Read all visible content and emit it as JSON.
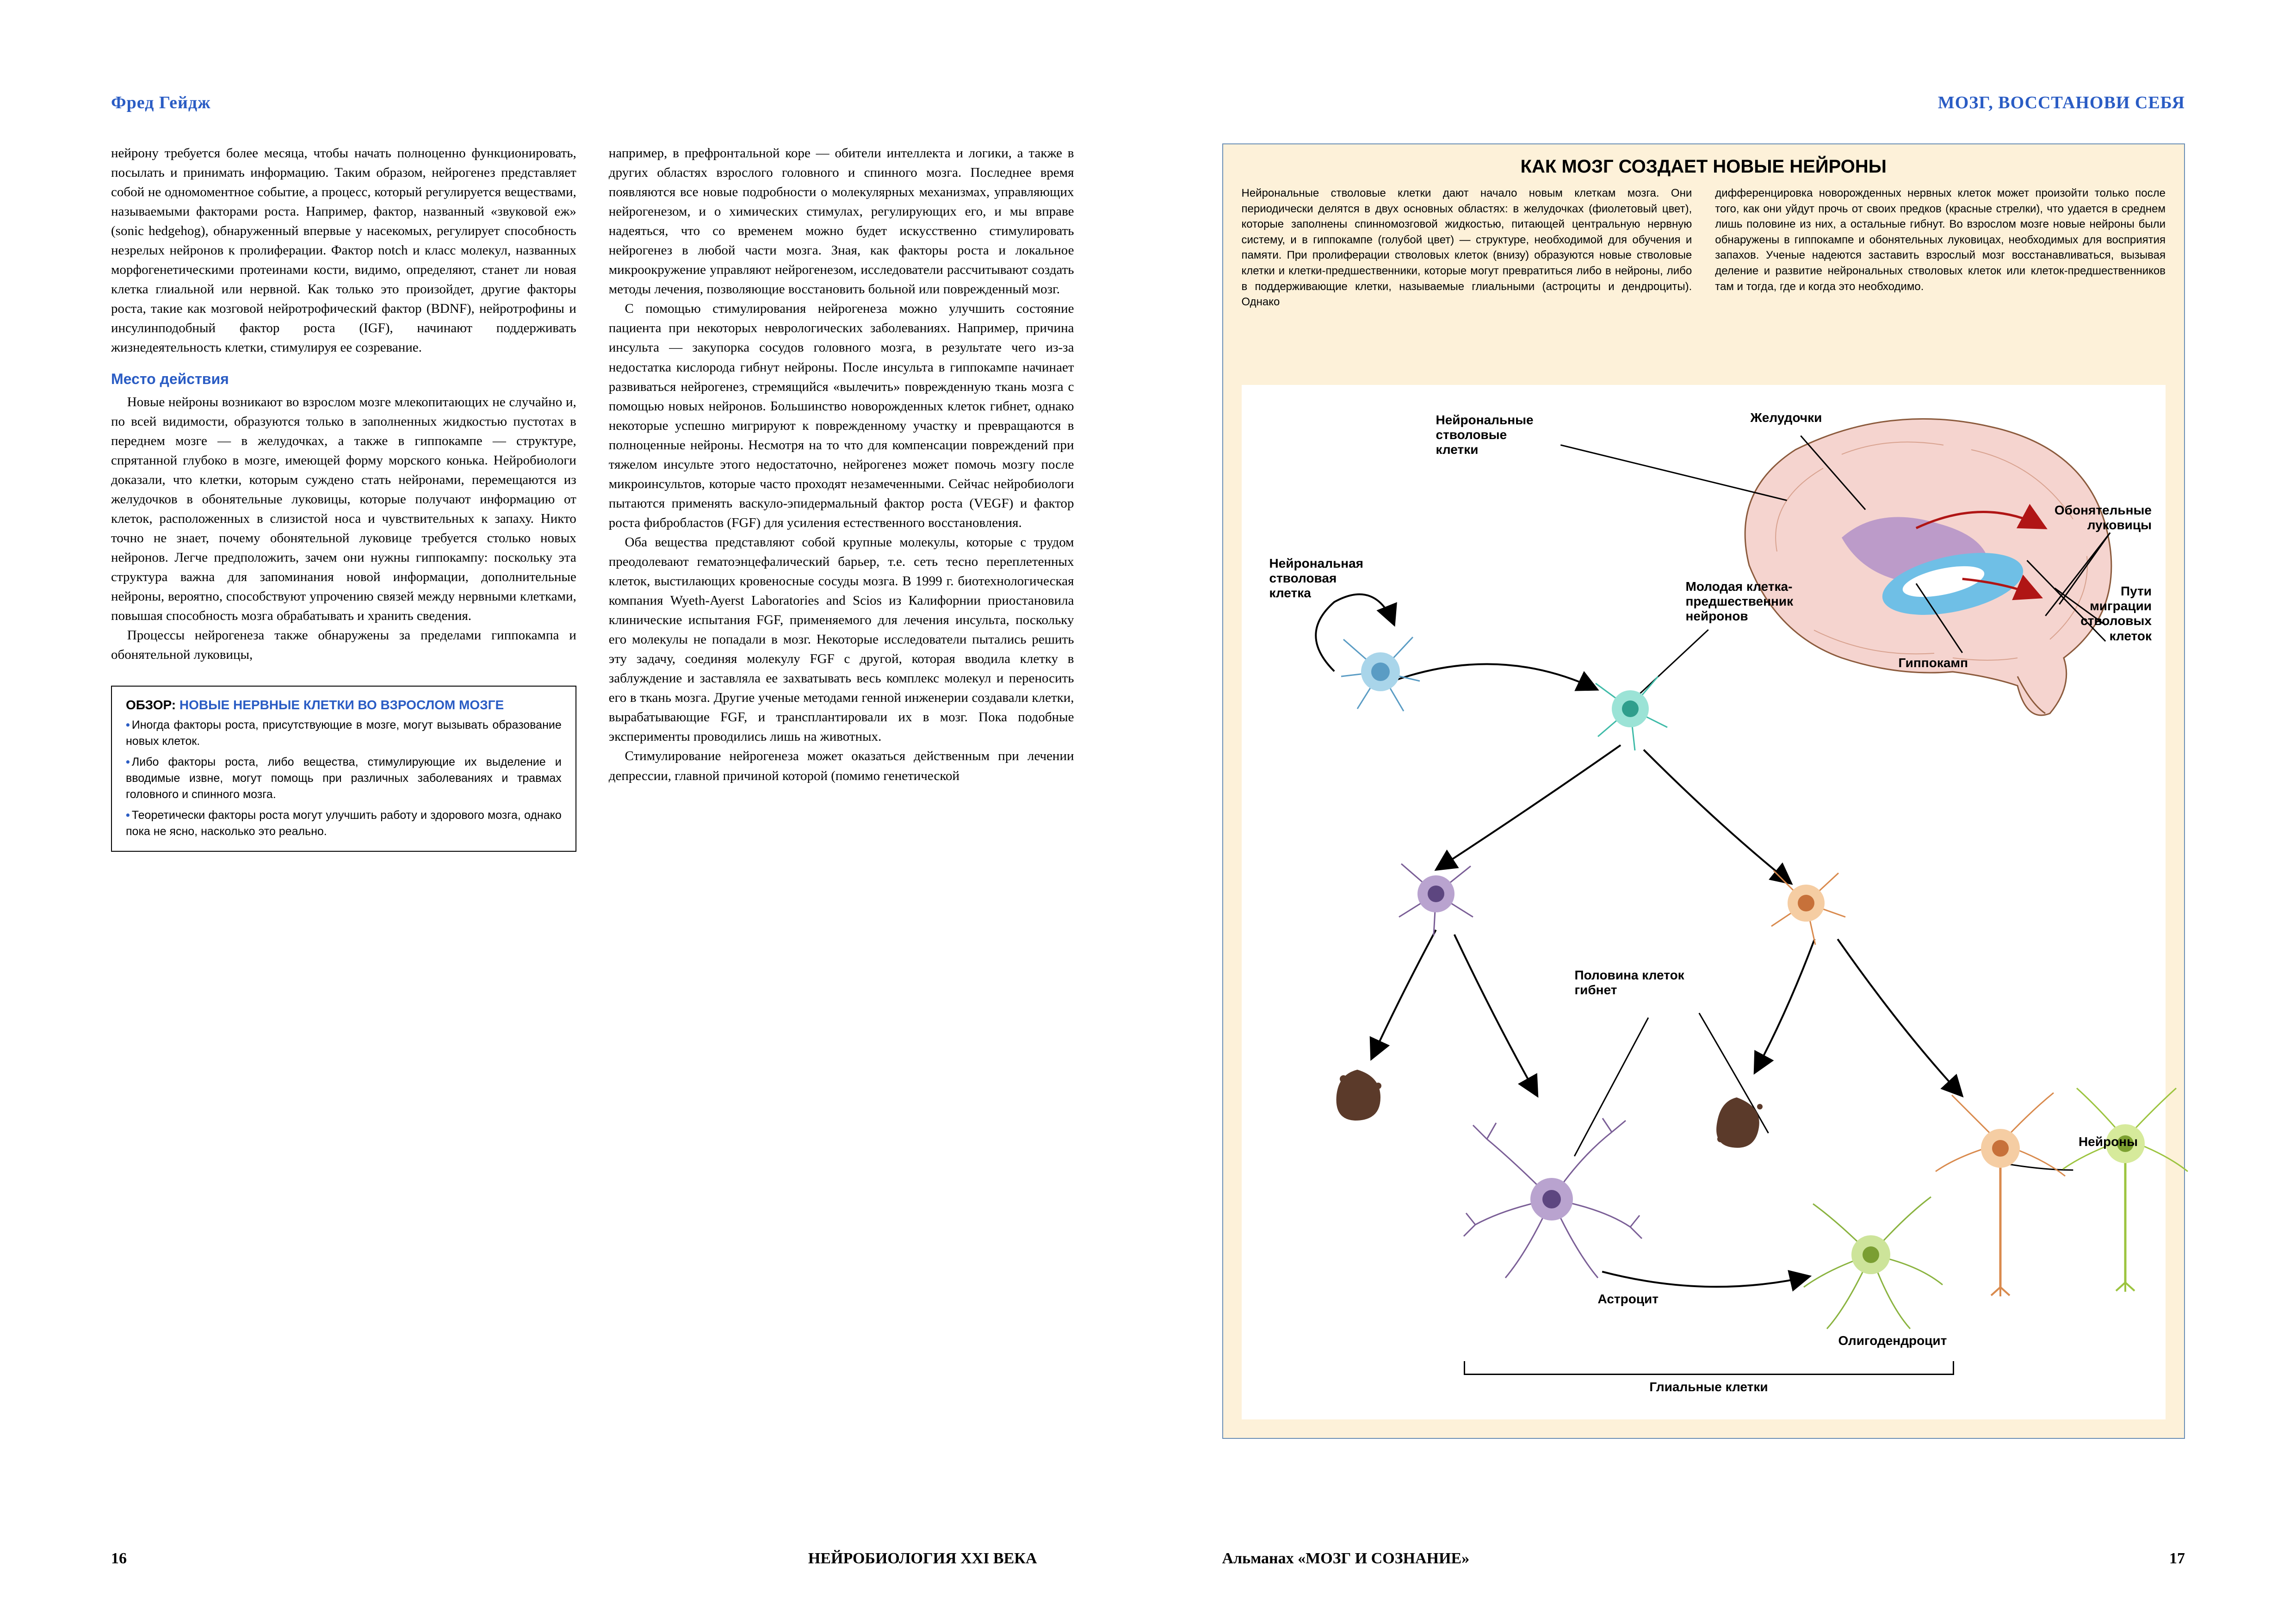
{
  "running_heads": {
    "left": "Фред Гейдж",
    "right": "МОЗГ, ВОССТАНОВИ СЕБЯ"
  },
  "pages": {
    "left": {
      "number": "16",
      "footer": "НЕЙРОБИОЛОГИЯ XXI ВЕКА"
    },
    "right": {
      "number": "17",
      "footer": "Альманах «МОЗГ И СОЗНАНИЕ»"
    }
  },
  "col1_p1": "нейрону требуется более месяца, чтобы начать полноценно функционировать, посылать и принимать информацию. Таким образом, нейрогенез представляет собой не одномоментное событие, а процесс, который регулируется веществами, называемыми факторами роста. Например, фактор, названный «звуковой еж» (sonic hedgehog), обнаруженный впервые у насекомых, регулирует способность незрелых нейронов к пролиферации. Фактор notch и класс молекул, названных морфогенетическими протеинами кости, видимо, определяют, станет ли новая клетка глиальной или нервной. Как только это произойдет, другие факторы роста, такие как мозговой нейротрофический фактор (BDNF), нейротрофины и инсулинподобный фактор роста (IGF), начинают поддерживать жизнедеятельность клетки, стимулируя ее созревание.",
  "section_head": "Место действия",
  "col1_p2": "Новые нейроны возникают во взрослом мозге млекопитающих не случайно и, по всей видимости, образуются только в заполненных жидкостью пустотах в переднем мозге — в желудочках, а также в гиппокампе — структуре, спрятанной глубоко в мозге, имеющей форму морского конька. Нейробиологи доказали, что клетки, которым суждено стать нейронами, перемещаются из желудочков в обонятельные луковицы, которые получают информацию от клеток, расположенных в слизистой носа и чувствительных к запаху. Никто точно не знает, почему обонятельной луковице требуется столько новых нейронов. Легче предположить, зачем они нужны гиппокампу: поскольку эта структура важна для запоминания новой информации, дополнительные нейроны, вероятно, способствуют упрочению связей между нервными клетками, повышая способность мозга обрабатывать и хранить сведения.",
  "col1_p3": "Процессы нейрогенеза также обнаружены за пределами гиппокампа и обонятельной луковицы,",
  "col2_p1": "например, в префронтальной коре — обители интеллекта и логики, а также в других областях взрослого головного и спинного мозга. Последнее время появляются все новые подробности о молекулярных механизмах, управляющих нейрогенезом, и о химических стимулах, регулирующих его, и мы вправе надеяться, что со временем можно будет искусственно стимулировать нейрогенез в любой части мозга. Зная, как факторы роста и локальное микроокружение управляют нейрогенезом, исследователи рассчитывают создать методы лечения, позволяющие восстановить больной или поврежденный мозг.",
  "col2_p2": "С помощью стимулирования нейрогенеза можно улучшить состояние пациента при некоторых неврологических заболеваниях. Например, причина инсульта — закупорка сосудов головного мозга, в результате чего из-за недостатка кислорода гибнут нейроны. После инсульта в гиппокампе начинает развиваться нейрогенез, стремящийся «вылечить» поврежденную ткань мозга с помощью новых нейронов. Большинство новорожденных клеток гибнет, однако некоторые успешно мигрируют к поврежденному участку и превращаются в полноценные нейроны. Несмотря на то что для компенсации повреждений при тяжелом инсульте этого недостаточно, нейрогенез может помочь мозгу после микроинсультов, которые часто проходят незамеченными. Сейчас нейробиологи пытаются применять васкуло-эпидермальный фактор роста (VEGF) и фактор роста фибробластов (FGF) для усиления естественного восстановления.",
  "col2_p3": "Оба вещества представляют собой крупные молекулы, которые с трудом преодолевают гематоэнцефалический барьер, т.е. сеть тесно переплетенных клеток, выстилающих кровеносные сосуды мозга. В 1999 г. биотехнологическая компания Wyeth-Ayerst Laboratories and Scios из Калифорнии приостановила клинические испытания FGF, применяемого для лечения инсульта, поскольку его молекулы не попадали в мозг. Некоторые исследователи пытались решить эту задачу, соединяя молекулу FGF с другой, которая вводила клетку в заблуждение и заставляла ее захватывать весь комплекс молекул и переносить его в ткань мозга. Другие ученые методами генной инженерии создавали клетки, вырабатывающие FGF, и трансплантировали их в мозг. Пока подобные эксперименты проводились лишь на животных.",
  "col2_p4": "Стимулирование нейрогенеза может оказаться действенным при лечении депрессии, главной причиной которой (помимо генетической",
  "review": {
    "label": "ОБЗОР:",
    "title": "НОВЫЕ НЕРВНЫЕ КЛЕТКИ ВО ВЗРОСЛОМ МОЗГЕ",
    "items": [
      "Иногда факторы роста, присутствующие в мозге, могут вызывать образование новых клеток.",
      "Либо факторы роста, либо вещества, стимулирующие их выделение и вводимые извне, могут помощь при различных заболеваниях и травмах головного и спинного мозга.",
      "Теоретически факторы роста могут улучшить работу и здорового мозга, однако пока не ясно, насколько это реально."
    ]
  },
  "figure": {
    "title": "КАК МОЗГ СОЗДАЕТ НОВЫЕ НЕЙРОНЫ",
    "caption_left": "Нейрональные стволовые клетки дают начало новым клеткам мозга. Они периодически делятся в двух основных областях: в желудочках (фиолетовый цвет), которые заполнены спинномозговой жидкостью, питающей центральную нервную систему, и в гиппокампе (голубой цвет) — структуре, необходимой для обучения и памяти. При пролиферации стволовых клеток (внизу) образуются новые стволовые клетки и клетки-предшественники, которые могут превратиться либо в нейроны, либо в поддерживающие клетки, называемые глиальными (астроциты и дендроциты). Однако",
    "caption_right": "дифференцировка новорожденных нервных клеток может произойти только после того, как они уйдут прочь от своих предков (красные стрелки), что удается в среднем лишь половине из них, а остальные гибнут. Во взрослом мозге новые нейроны были обнаружены в гиппокампе и обонятельных луковицах, необходимых для восприятия запахов. Ученые надеются заставить взрослый мозг восстанавливаться, вызывая деление и развитие нейрональных стволовых клеток или клеток-предшественников там и тогда, где и когда это необходимо.",
    "labels": {
      "stem_plural": "Нейрональные\nстволовые\nклетки",
      "stem_singular": "Нейрональная\nстволовая\nклетка",
      "ventricles": "Желудочки",
      "bulbs": "Обонятельные\nлуковицы",
      "migration": "Пути\nмиграции\nстволовых\nклеток",
      "hippocampus": "Гиппокамп",
      "progenitor": "Молодая клетка-\nпредшественник\nнейронов",
      "half_die": "Половина клеток\nгибнет",
      "astrocyte": "Астроцит",
      "oligodendrocyte": "Олигодендроцит",
      "neurons": "Нейроны",
      "glial": "Глиальные клетки"
    },
    "colors": {
      "panel_bg": "#fdf1d9",
      "panel_border": "#6b8fb5",
      "ventricle": "#8d6cc4",
      "hippocampus": "#6fbfe6",
      "brain_pink": "#f5d4cf",
      "brain_outline": "#8b5a3c",
      "stem_blue": "#7fbfe0",
      "progenitor_teal": "#6fd2c8",
      "neuron_peach": "#f2b98a",
      "glia_purple": "#8a6aa6",
      "oligo_green": "#b9d96a",
      "neuron_green": "#b7dd58",
      "dead_brown": "#5b3a2a",
      "arrow_red": "#b01515",
      "arrow_black": "#000000"
    }
  }
}
